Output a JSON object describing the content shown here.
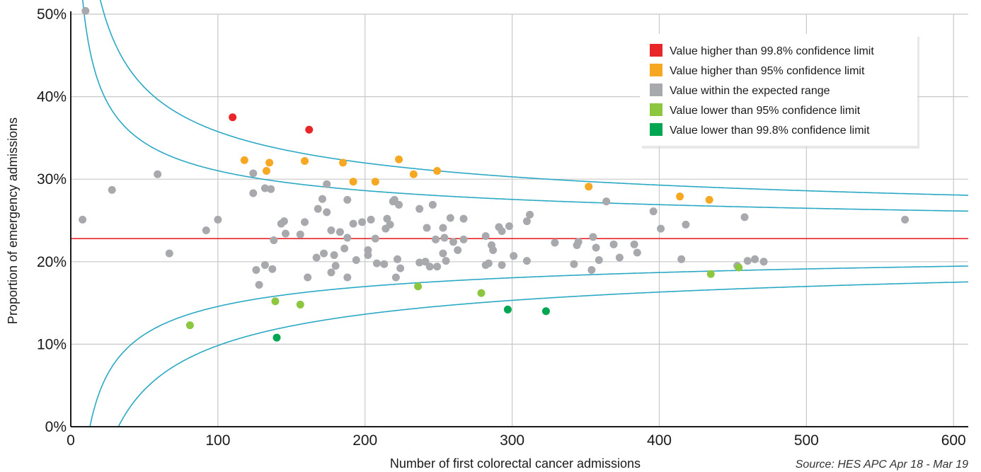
{
  "chart_data": {
    "type": "scatter",
    "title": "",
    "xlabel": "Number of first colorectal cancer admissions",
    "ylabel": "Proportion of emergency admissions",
    "source": "Source: HES APC Apr 18 - Mar 19",
    "xlim": [
      0,
      610
    ],
    "ylim": [
      0,
      50
    ],
    "x_ticks": [
      0,
      100,
      200,
      300,
      400,
      500,
      600
    ],
    "x_tick_labels": [
      "0",
      "100",
      "200",
      "300",
      "400",
      "500",
      "600"
    ],
    "y_ticks": [
      0,
      10,
      20,
      30,
      40,
      50
    ],
    "y_tick_labels": [
      "0%",
      "10%",
      "20%",
      "30%",
      "40%",
      "50%"
    ],
    "grid": true,
    "legend_position": "top-right",
    "mean_line": {
      "y": 22.8,
      "color": "#e8262a"
    },
    "funnel_color": "#2aa8c4",
    "legend": [
      {
        "label": "Value higher than 99.8% confidence limit",
        "color": "#e8262a"
      },
      {
        "label": "Value higher than 95% confidence limit",
        "color": "#f7a823"
      },
      {
        "label": "Value within the expected range",
        "color": "#a7a9ac"
      },
      {
        "label": "Value lower than 95% confidence limit",
        "color": "#8dc63f"
      },
      {
        "label": "Value lower than 99.8% confidence limit",
        "color": "#00a651"
      }
    ],
    "series": [
      {
        "category": 0,
        "points": [
          [
            110,
            37.5
          ],
          [
            162,
            36.0
          ]
        ]
      },
      {
        "category": 1,
        "points": [
          [
            118,
            32.3
          ],
          [
            133,
            31.0
          ],
          [
            135,
            32.0
          ],
          [
            159,
            32.2
          ],
          [
            185,
            32.0
          ],
          [
            192,
            29.7
          ],
          [
            207,
            29.7
          ],
          [
            223,
            32.4
          ],
          [
            233,
            30.6
          ],
          [
            249,
            31.0
          ],
          [
            352,
            29.1
          ],
          [
            414,
            27.9
          ],
          [
            434,
            27.5
          ]
        ]
      },
      {
        "category": 2,
        "points": [
          [
            10,
            50.4
          ],
          [
            8,
            25.1
          ],
          [
            28,
            28.7
          ],
          [
            59,
            30.6
          ],
          [
            67,
            21.0
          ],
          [
            92,
            23.8
          ],
          [
            100,
            25.1
          ],
          [
            124,
            30.7
          ],
          [
            124,
            28.3
          ],
          [
            126,
            19.0
          ],
          [
            128,
            17.2
          ],
          [
            132,
            28.9
          ],
          [
            132,
            19.6
          ],
          [
            136,
            28.8
          ],
          [
            137,
            19.1
          ],
          [
            138,
            22.6
          ],
          [
            143,
            24.6
          ],
          [
            145,
            24.9
          ],
          [
            146,
            23.4
          ],
          [
            156,
            23.3
          ],
          [
            159,
            24.8
          ],
          [
            161,
            18.1
          ],
          [
            167,
            20.5
          ],
          [
            168,
            26.4
          ],
          [
            171,
            27.6
          ],
          [
            172,
            21.0
          ],
          [
            174,
            29.4
          ],
          [
            174,
            26.0
          ],
          [
            177,
            23.8
          ],
          [
            177,
            18.7
          ],
          [
            179,
            20.8
          ],
          [
            180,
            19.5
          ],
          [
            183,
            23.6
          ],
          [
            186,
            21.6
          ],
          [
            188,
            27.5
          ],
          [
            188,
            22.9
          ],
          [
            188,
            18.1
          ],
          [
            192,
            24.6
          ],
          [
            194,
            20.2
          ],
          [
            198,
            24.8
          ],
          [
            202,
            21.4
          ],
          [
            202,
            20.8
          ],
          [
            204,
            25.1
          ],
          [
            207,
            22.8
          ],
          [
            208,
            19.8
          ],
          [
            213,
            19.7
          ],
          [
            214,
            24.0
          ],
          [
            215,
            25.2
          ],
          [
            217,
            24.5
          ],
          [
            219,
            27.3
          ],
          [
            220,
            27.5
          ],
          [
            221,
            18.1
          ],
          [
            222,
            20.3
          ],
          [
            223,
            26.9
          ],
          [
            224,
            19.2
          ],
          [
            237,
            26.4
          ],
          [
            237,
            19.9
          ],
          [
            241,
            20.0
          ],
          [
            242,
            24.1
          ],
          [
            244,
            19.4
          ],
          [
            246,
            26.9
          ],
          [
            248,
            22.7
          ],
          [
            249,
            19.4
          ],
          [
            253,
            21.0
          ],
          [
            253,
            24.1
          ],
          [
            254,
            22.9
          ],
          [
            255,
            20.1
          ],
          [
            258,
            25.3
          ],
          [
            260,
            22.4
          ],
          [
            263,
            21.4
          ],
          [
            267,
            25.2
          ],
          [
            267,
            22.7
          ],
          [
            282,
            23.1
          ],
          [
            282,
            19.6
          ],
          [
            284,
            19.8
          ],
          [
            286,
            22.0
          ],
          [
            287,
            21.4
          ],
          [
            291,
            24.2
          ],
          [
            293,
            23.7
          ],
          [
            293,
            19.6
          ],
          [
            298,
            24.3
          ],
          [
            301,
            20.7
          ],
          [
            310,
            24.9
          ],
          [
            310,
            20.1
          ],
          [
            312,
            25.7
          ],
          [
            329,
            22.3
          ],
          [
            342,
            19.7
          ],
          [
            344,
            22.0
          ],
          [
            345,
            22.4
          ],
          [
            354,
            19.0
          ],
          [
            355,
            23.0
          ],
          [
            357,
            21.7
          ],
          [
            359,
            20.2
          ],
          [
            364,
            27.3
          ],
          [
            369,
            22.1
          ],
          [
            373,
            20.5
          ],
          [
            383,
            22.1
          ],
          [
            385,
            21.1
          ],
          [
            396,
            26.1
          ],
          [
            401,
            24.0
          ],
          [
            415,
            20.3
          ],
          [
            418,
            24.5
          ],
          [
            453,
            19.5
          ],
          [
            458,
            25.4
          ],
          [
            460,
            20.1
          ],
          [
            465,
            20.3
          ],
          [
            471,
            20.0
          ],
          [
            567,
            25.1
          ]
        ]
      },
      {
        "category": 3,
        "points": [
          [
            81,
            12.3
          ],
          [
            139,
            15.2
          ],
          [
            156,
            14.8
          ],
          [
            236,
            17.0
          ],
          [
            279,
            16.2
          ],
          [
            435,
            18.5
          ],
          [
            454,
            19.3
          ]
        ]
      },
      {
        "category": 4,
        "points": [
          [
            140,
            10.8
          ],
          [
            297,
            14.2
          ],
          [
            323,
            14.0
          ]
        ]
      }
    ]
  }
}
